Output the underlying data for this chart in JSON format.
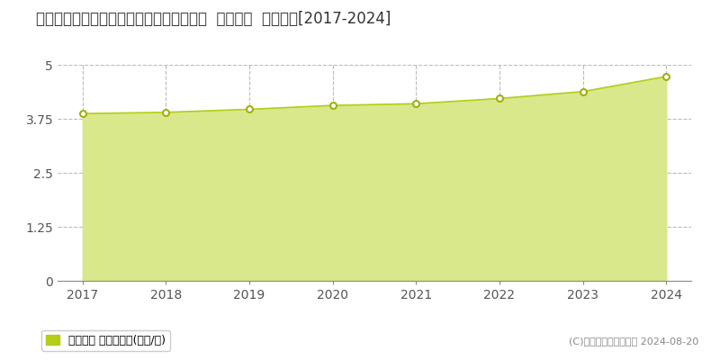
{
  "title": "鳥取県米子市西福原７丁目１０６２番１外  地価公示  地価推移[2017-2024]",
  "years": [
    2017,
    2018,
    2019,
    2020,
    2021,
    2022,
    2023,
    2024
  ],
  "values": [
    3.87,
    3.9,
    3.97,
    4.06,
    4.1,
    4.22,
    4.38,
    4.73
  ],
  "ylim": [
    0,
    5
  ],
  "yticks": [
    0,
    1.25,
    2.5,
    3.75,
    5
  ],
  "ytick_labels": [
    "0",
    "1.25",
    "2.5",
    "3.75",
    "5"
  ],
  "line_color": "#b5cc18",
  "fill_color": "#d9e88a",
  "marker_color": "#ffffff",
  "marker_edge_color": "#a0b010",
  "grid_color": "#aaaaaa",
  "bg_color": "#ffffff",
  "legend_label": "地価公示 平均坪単価(万円/坪)",
  "copyright_text": "(C)土地価格ドットコム 2024-08-20",
  "title_fontsize": 12,
  "axis_fontsize": 10,
  "legend_fontsize": 9,
  "copyright_fontsize": 8
}
